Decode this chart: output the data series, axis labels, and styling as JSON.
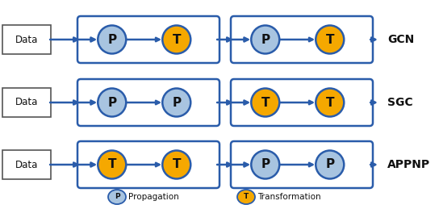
{
  "rows": [
    {
      "label": "GCN",
      "groups": [
        [
          "P",
          "T"
        ],
        [
          "P",
          "T"
        ]
      ]
    },
    {
      "label": "SGC",
      "groups": [
        [
          "P",
          "P"
        ],
        [
          "T",
          "T"
        ]
      ]
    },
    {
      "label": "APPNP",
      "groups": [
        [
          "T",
          "T"
        ],
        [
          "P",
          "P"
        ]
      ]
    }
  ],
  "node_colors": {
    "P": "#a8c4e0",
    "T": "#f5a800"
  },
  "node_edge_color": "#2a5caa",
  "box_color": "#2a5caa",
  "arrow_color": "#2a5caa",
  "data_box_edge": "#555555",
  "background_color": "#ffffff",
  "legend_P_color": "#a8c4e0",
  "legend_T_color": "#f5a800",
  "fig_width": 5.44,
  "fig_height": 2.54,
  "dpi": 100
}
